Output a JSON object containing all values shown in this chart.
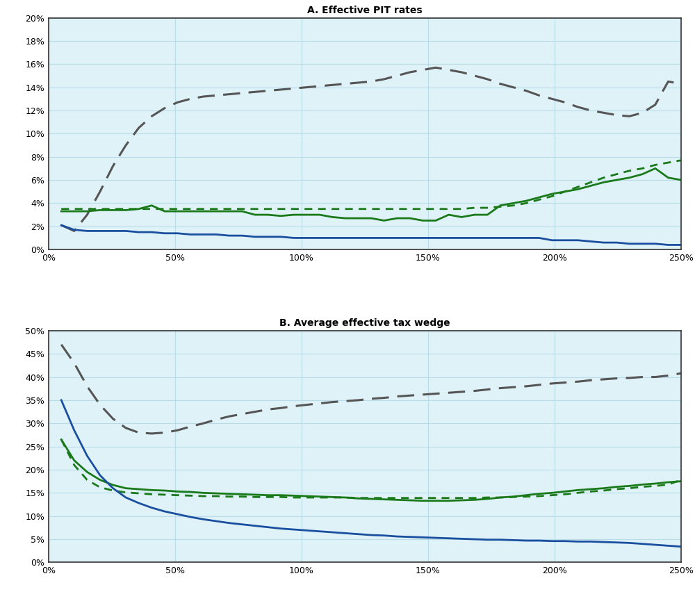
{
  "title_a": "A. Effective PIT rates",
  "title_b": "B. Average effective tax wedge",
  "bg_color": "#dff2f8",
  "x_ticks": [
    0,
    50,
    100,
    150,
    200,
    250
  ],
  "panel_a": {
    "ylim": [
      0,
      0.2
    ],
    "yticks": [
      0,
      0.02,
      0.04,
      0.06,
      0.08,
      0.1,
      0.12,
      0.14,
      0.16,
      0.18,
      0.2
    ],
    "gray_dashed": [
      0.021,
      0.016,
      0.03,
      0.05,
      0.072,
      0.09,
      0.105,
      0.115,
      0.122,
      0.127,
      0.13,
      0.132,
      0.133,
      0.134,
      0.135,
      0.136,
      0.137,
      0.138,
      0.139,
      0.14,
      0.141,
      0.142,
      0.143,
      0.144,
      0.145,
      0.147,
      0.15,
      0.153,
      0.155,
      0.157,
      0.155,
      0.153,
      0.15,
      0.147,
      0.143,
      0.14,
      0.137,
      0.133,
      0.13,
      0.127,
      0.123,
      0.12,
      0.118,
      0.116,
      0.115,
      0.118,
      0.125,
      0.145,
      0.143
    ],
    "green_solid": [
      0.033,
      0.033,
      0.033,
      0.034,
      0.034,
      0.034,
      0.035,
      0.038,
      0.033,
      0.033,
      0.033,
      0.033,
      0.033,
      0.033,
      0.033,
      0.03,
      0.03,
      0.029,
      0.03,
      0.03,
      0.03,
      0.028,
      0.027,
      0.027,
      0.027,
      0.025,
      0.027,
      0.027,
      0.025,
      0.025,
      0.03,
      0.028,
      0.03,
      0.03,
      0.038,
      0.04,
      0.042,
      0.045,
      0.048,
      0.05,
      0.052,
      0.055,
      0.058,
      0.06,
      0.062,
      0.065,
      0.07,
      0.062,
      0.06
    ],
    "green_dotted": [
      0.035,
      0.035,
      0.035,
      0.035,
      0.035,
      0.035,
      0.035,
      0.035,
      0.035,
      0.035,
      0.035,
      0.035,
      0.035,
      0.035,
      0.035,
      0.035,
      0.035,
      0.035,
      0.035,
      0.035,
      0.035,
      0.035,
      0.035,
      0.035,
      0.035,
      0.035,
      0.035,
      0.035,
      0.035,
      0.035,
      0.035,
      0.035,
      0.036,
      0.036,
      0.037,
      0.038,
      0.04,
      0.043,
      0.046,
      0.05,
      0.054,
      0.058,
      0.062,
      0.065,
      0.068,
      0.07,
      0.073,
      0.075,
      0.077
    ],
    "blue_solid": [
      0.021,
      0.017,
      0.016,
      0.016,
      0.016,
      0.016,
      0.015,
      0.015,
      0.014,
      0.014,
      0.013,
      0.013,
      0.013,
      0.012,
      0.012,
      0.011,
      0.011,
      0.011,
      0.01,
      0.01,
      0.01,
      0.01,
      0.01,
      0.01,
      0.01,
      0.01,
      0.01,
      0.01,
      0.01,
      0.01,
      0.01,
      0.01,
      0.01,
      0.01,
      0.01,
      0.01,
      0.01,
      0.01,
      0.008,
      0.008,
      0.008,
      0.007,
      0.006,
      0.006,
      0.005,
      0.005,
      0.005,
      0.004,
      0.004
    ]
  },
  "panel_b": {
    "ylim": [
      0,
      0.5
    ],
    "yticks": [
      0,
      0.05,
      0.1,
      0.15,
      0.2,
      0.25,
      0.3,
      0.35,
      0.4,
      0.45,
      0.5
    ],
    "gray_dashed": [
      0.47,
      0.43,
      0.38,
      0.34,
      0.31,
      0.29,
      0.28,
      0.278,
      0.28,
      0.285,
      0.293,
      0.3,
      0.308,
      0.315,
      0.32,
      0.325,
      0.33,
      0.333,
      0.337,
      0.34,
      0.343,
      0.346,
      0.348,
      0.35,
      0.353,
      0.355,
      0.358,
      0.36,
      0.362,
      0.364,
      0.366,
      0.368,
      0.37,
      0.373,
      0.376,
      0.378,
      0.38,
      0.383,
      0.386,
      0.388,
      0.39,
      0.393,
      0.395,
      0.397,
      0.398,
      0.4,
      0.4,
      0.403,
      0.408
    ],
    "green_solid": [
      0.265,
      0.22,
      0.195,
      0.178,
      0.167,
      0.16,
      0.158,
      0.156,
      0.155,
      0.153,
      0.152,
      0.15,
      0.149,
      0.148,
      0.147,
      0.146,
      0.145,
      0.145,
      0.144,
      0.143,
      0.142,
      0.141,
      0.14,
      0.138,
      0.137,
      0.136,
      0.135,
      0.134,
      0.133,
      0.133,
      0.133,
      0.134,
      0.135,
      0.137,
      0.14,
      0.142,
      0.145,
      0.148,
      0.15,
      0.153,
      0.156,
      0.158,
      0.16,
      0.163,
      0.165,
      0.168,
      0.17,
      0.173,
      0.175
    ],
    "green_dotted": [
      0.265,
      0.21,
      0.178,
      0.162,
      0.155,
      0.151,
      0.149,
      0.147,
      0.146,
      0.145,
      0.144,
      0.143,
      0.143,
      0.142,
      0.142,
      0.141,
      0.141,
      0.141,
      0.14,
      0.14,
      0.14,
      0.14,
      0.14,
      0.139,
      0.139,
      0.139,
      0.139,
      0.139,
      0.139,
      0.139,
      0.139,
      0.139,
      0.139,
      0.14,
      0.14,
      0.141,
      0.142,
      0.143,
      0.145,
      0.147,
      0.15,
      0.153,
      0.155,
      0.158,
      0.16,
      0.163,
      0.165,
      0.168,
      0.178
    ],
    "blue_solid": [
      0.35,
      0.285,
      0.23,
      0.188,
      0.16,
      0.14,
      0.128,
      0.118,
      0.11,
      0.104,
      0.098,
      0.093,
      0.089,
      0.085,
      0.082,
      0.079,
      0.076,
      0.073,
      0.071,
      0.069,
      0.067,
      0.065,
      0.063,
      0.061,
      0.059,
      0.058,
      0.056,
      0.055,
      0.054,
      0.053,
      0.052,
      0.051,
      0.05,
      0.049,
      0.049,
      0.048,
      0.047,
      0.047,
      0.046,
      0.046,
      0.045,
      0.045,
      0.044,
      0.043,
      0.042,
      0.04,
      0.038,
      0.036,
      0.034
    ]
  },
  "gray_color": "#555555",
  "green_color": "#1a7a1a",
  "blue_color": "#1a4fa0",
  "grid_color": "#b8dce8",
  "border_color": "#333333",
  "title_fontsize": 10,
  "tick_fontsize": 9
}
